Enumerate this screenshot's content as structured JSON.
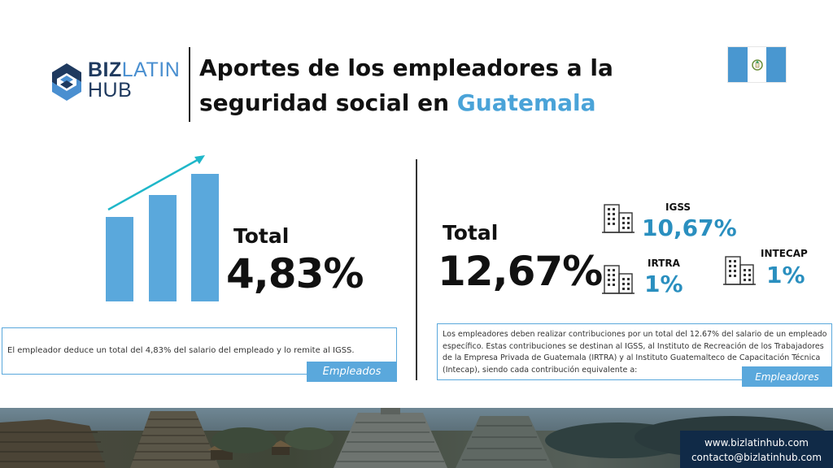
{
  "logo": {
    "part1": "BIZ",
    "part2": "LATIN",
    "part3": "HUB"
  },
  "title": {
    "line1": "Aportes de los empleadores a la",
    "line2_prefix": "seguridad social en ",
    "line2_accent": "Guatemala"
  },
  "colors": {
    "accent": "#4aa3d8",
    "bar": "#5aa8dc",
    "navy": "#102a47",
    "pct": "#2a8fbf"
  },
  "left": {
    "total_label": "Total",
    "total_value": "4,83%",
    "description": "El empleador deduce un total del 4,83% del salario del empleado y lo remite al IGSS.",
    "tag": "Empleados"
  },
  "right": {
    "total_label": "Total",
    "total_value": "12,67%",
    "description": "Los empleadores deben realizar contribuciones por un total del 12.67% del salario de un empleado específico. Estas contribuciones se destinan al IGSS, al Instituto de Recreación de los Trabajadores de la Empresa Privada de Guatemala (IRTRA) y al Instituto Guatemalteco de Capacitación Técnica (Intecap), siendo cada contribución equivalente a:",
    "tag": "Empleadores",
    "orgs": [
      {
        "name": "IGSS",
        "pct": "10,67%",
        "icon": "building-icon"
      },
      {
        "name": "IRTRA",
        "pct": "1%",
        "icon": "building-icon"
      },
      {
        "name": "INTECAP",
        "pct": "1%",
        "icon": "building-icon"
      }
    ]
  },
  "footer": {
    "website": "www.bizlatinhub.com",
    "email": "contacto@bizlatinhub.com"
  }
}
